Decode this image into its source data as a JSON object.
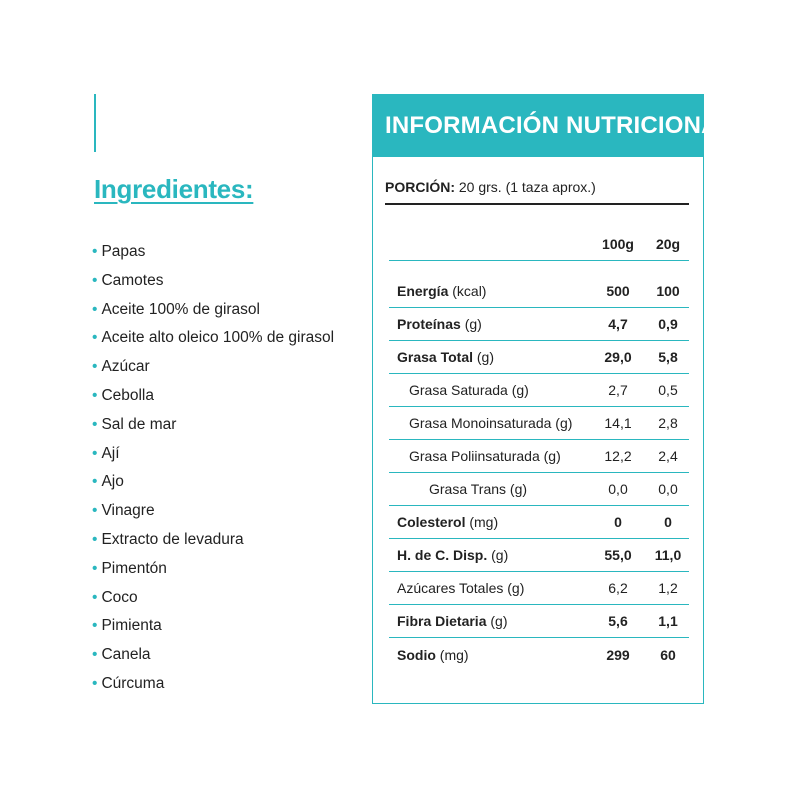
{
  "ingredients": {
    "title": "Ingredientes:",
    "bullet": "•",
    "items": [
      "Papas",
      "Camotes",
      "Aceite 100% de girasol",
      "Aceite alto oleico 100% de girasol",
      "Azúcar",
      "Cebolla",
      "Sal de mar",
      "Ají",
      "Ajo",
      "Vinagre",
      "Extracto de levadura",
      "Pimentón",
      "Coco",
      "Pimienta",
      "Canela",
      "Cúrcuma"
    ]
  },
  "nutrition": {
    "title": "INFORMACIÓN NUTRICIONAL",
    "portion_label": "PORCIÓN:",
    "portion_value": "20 grs. (1 taza aprox.)",
    "col1": "100g",
    "col2": "20g",
    "rows": [
      {
        "name": "Energía",
        "unit": "(kcal)",
        "v1": "500",
        "v2": "100"
      },
      {
        "name": "Proteínas",
        "unit": "(g)",
        "v1": "4,7",
        "v2": "0,9"
      },
      {
        "name": "Grasa Total",
        "unit": "(g)",
        "v1": "29,0",
        "v2": "5,8"
      },
      {
        "name": "Grasa Saturada (g)",
        "v1": "2,7",
        "v2": "0,5"
      },
      {
        "name": "Grasa Monoinsaturada (g)",
        "v1": "14,1",
        "v2": "2,8"
      },
      {
        "name": "Grasa Poliinsaturada (g)",
        "v1": "12,2",
        "v2": "2,4"
      },
      {
        "name": "Grasa Trans (g)",
        "v1": "0,0",
        "v2": "0,0"
      },
      {
        "name": "Colesterol",
        "unit": "(mg)",
        "v1": "0",
        "v2": "0"
      },
      {
        "name": "H. de C. Disp.",
        "unit": "(g)",
        "v1": "55,0",
        "v2": "11,0"
      },
      {
        "name": "Azúcares Totales (g)",
        "v1": "6,2",
        "v2": "1,2"
      },
      {
        "name": "Fibra Dietaria",
        "unit": "(g)",
        "v1": "5,6",
        "v2": "1,1"
      },
      {
        "name": "Sodio",
        "unit": "(mg)",
        "v1": "299",
        "v2": "60"
      }
    ]
  }
}
